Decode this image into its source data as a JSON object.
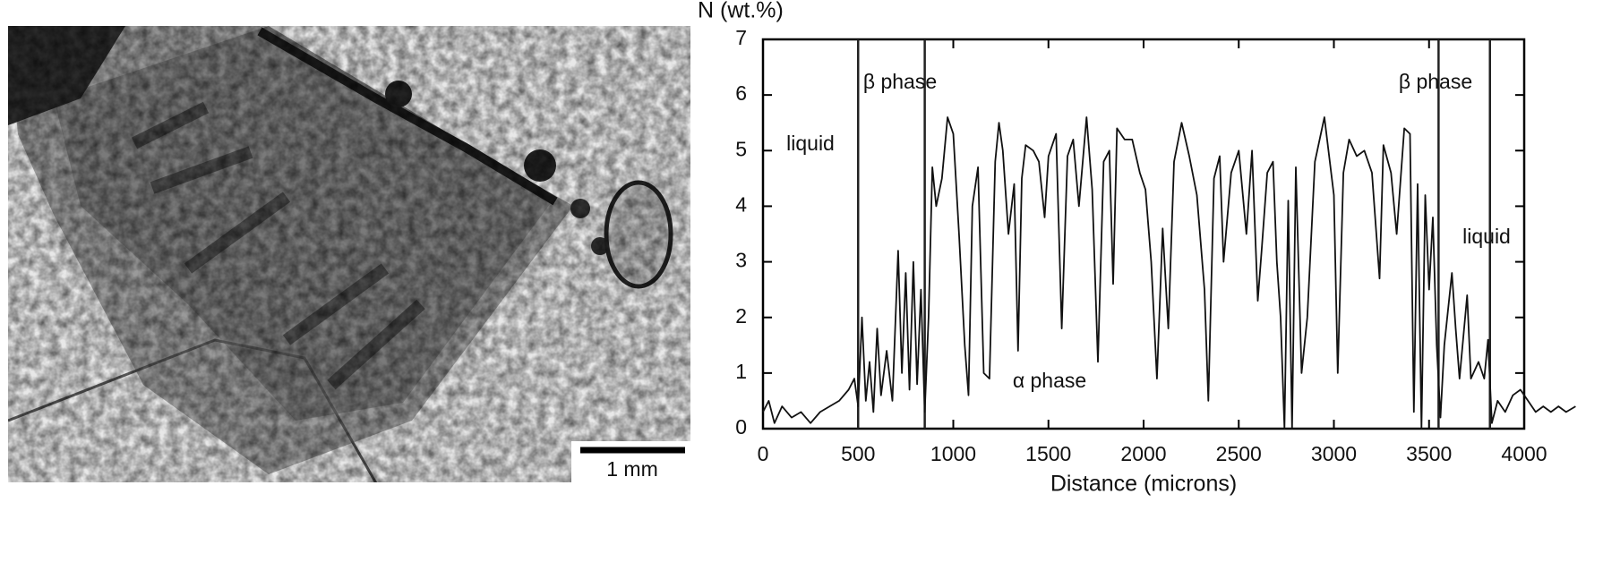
{
  "micrograph": {
    "scale_bar": "1 mm"
  },
  "chart_data": {
    "type": "line",
    "ylabel": "N (wt.%)",
    "xlabel": "Distance (microns)",
    "xlim": [
      0,
      4000
    ],
    "ylim": [
      0,
      7
    ],
    "xticks": [
      0,
      500,
      1000,
      1500,
      2000,
      2500,
      3000,
      3500,
      4000
    ],
    "yticks": [
      0,
      1,
      2,
      3,
      4,
      5,
      6,
      7
    ],
    "boundaries": [
      500,
      850,
      3550,
      3820
    ],
    "annotations": [
      "β phase",
      "liquid",
      "α phase",
      "β phase",
      "liquid"
    ],
    "series": [
      {
        "color": "#111111",
        "x": [
          0,
          30,
          60,
          100,
          150,
          200,
          250,
          300,
          350,
          400,
          450,
          480,
          500,
          520,
          540,
          560,
          580,
          600,
          620,
          650,
          680,
          710,
          730,
          750,
          770,
          790,
          810,
          830,
          850,
          870,
          890,
          910,
          940,
          970,
          1000,
          1030,
          1060,
          1080,
          1100,
          1130,
          1160,
          1190,
          1220,
          1240,
          1260,
          1290,
          1320,
          1340,
          1360,
          1380,
          1420,
          1450,
          1480,
          1500,
          1540,
          1570,
          1600,
          1630,
          1660,
          1700,
          1730,
          1760,
          1790,
          1820,
          1840,
          1860,
          1900,
          1940,
          1980,
          2010,
          2040,
          2070,
          2100,
          2130,
          2160,
          2200,
          2240,
          2280,
          2320,
          2340,
          2370,
          2400,
          2420,
          2460,
          2500,
          2540,
          2570,
          2600,
          2620,
          2650,
          2680,
          2700,
          2720,
          2740,
          2760,
          2780,
          2800,
          2830,
          2860,
          2900,
          2950,
          3000,
          3020,
          3050,
          3080,
          3120,
          3160,
          3200,
          3240,
          3260,
          3300,
          3330,
          3370,
          3400,
          3420,
          3440,
          3460,
          3480,
          3500,
          3520,
          3540,
          3560,
          3580,
          3620,
          3640,
          3660,
          3700,
          3720,
          3760,
          3790,
          3810,
          3830,
          3860,
          3900,
          3940,
          3980,
          4020,
          4060,
          4100,
          4140,
          4180,
          4220,
          4270
        ],
        "values": [
          0.3,
          0.5,
          0.1,
          0.4,
          0.2,
          0.3,
          0.1,
          0.3,
          0.4,
          0.5,
          0.7,
          0.9,
          0.4,
          2.0,
          0.5,
          1.2,
          0.3,
          1.8,
          0.6,
          1.4,
          0.5,
          3.2,
          1.0,
          2.8,
          0.7,
          3.0,
          0.8,
          2.5,
          0.3,
          2.0,
          4.7,
          4.0,
          4.5,
          5.6,
          5.3,
          3.5,
          1.5,
          0.6,
          4.0,
          4.7,
          1.0,
          0.9,
          4.8,
          5.5,
          5.0,
          3.5,
          4.4,
          1.4,
          4.5,
          5.1,
          5.0,
          4.8,
          3.8,
          4.9,
          5.3,
          1.8,
          4.9,
          5.2,
          4.0,
          5.6,
          4.3,
          1.2,
          4.8,
          5.0,
          2.6,
          5.4,
          5.2,
          5.2,
          4.6,
          4.3,
          3.0,
          0.9,
          3.6,
          1.8,
          4.8,
          5.5,
          4.9,
          4.2,
          2.5,
          0.5,
          4.5,
          4.9,
          3.0,
          4.6,
          5.0,
          3.5,
          5.0,
          2.3,
          3.2,
          4.6,
          4.8,
          3.0,
          2.0,
          0,
          4.1,
          0,
          4.7,
          1.0,
          2.0,
          4.8,
          5.6,
          4.2,
          1.0,
          4.6,
          5.2,
          4.9,
          5.0,
          4.6,
          2.7,
          5.1,
          4.6,
          3.5,
          5.4,
          5.3,
          0.3,
          4.4,
          0,
          4.2,
          2.5,
          3.8,
          1.5,
          0.2,
          1.5,
          2.8,
          1.8,
          0.9,
          2.4,
          0.9,
          1.2,
          0.9,
          1.6,
          0.1,
          0.5,
          0.3,
          0.6,
          0.7,
          0.5,
          0.3,
          0.4,
          0.3,
          0.4,
          0.3,
          0.4
        ]
      }
    ]
  }
}
